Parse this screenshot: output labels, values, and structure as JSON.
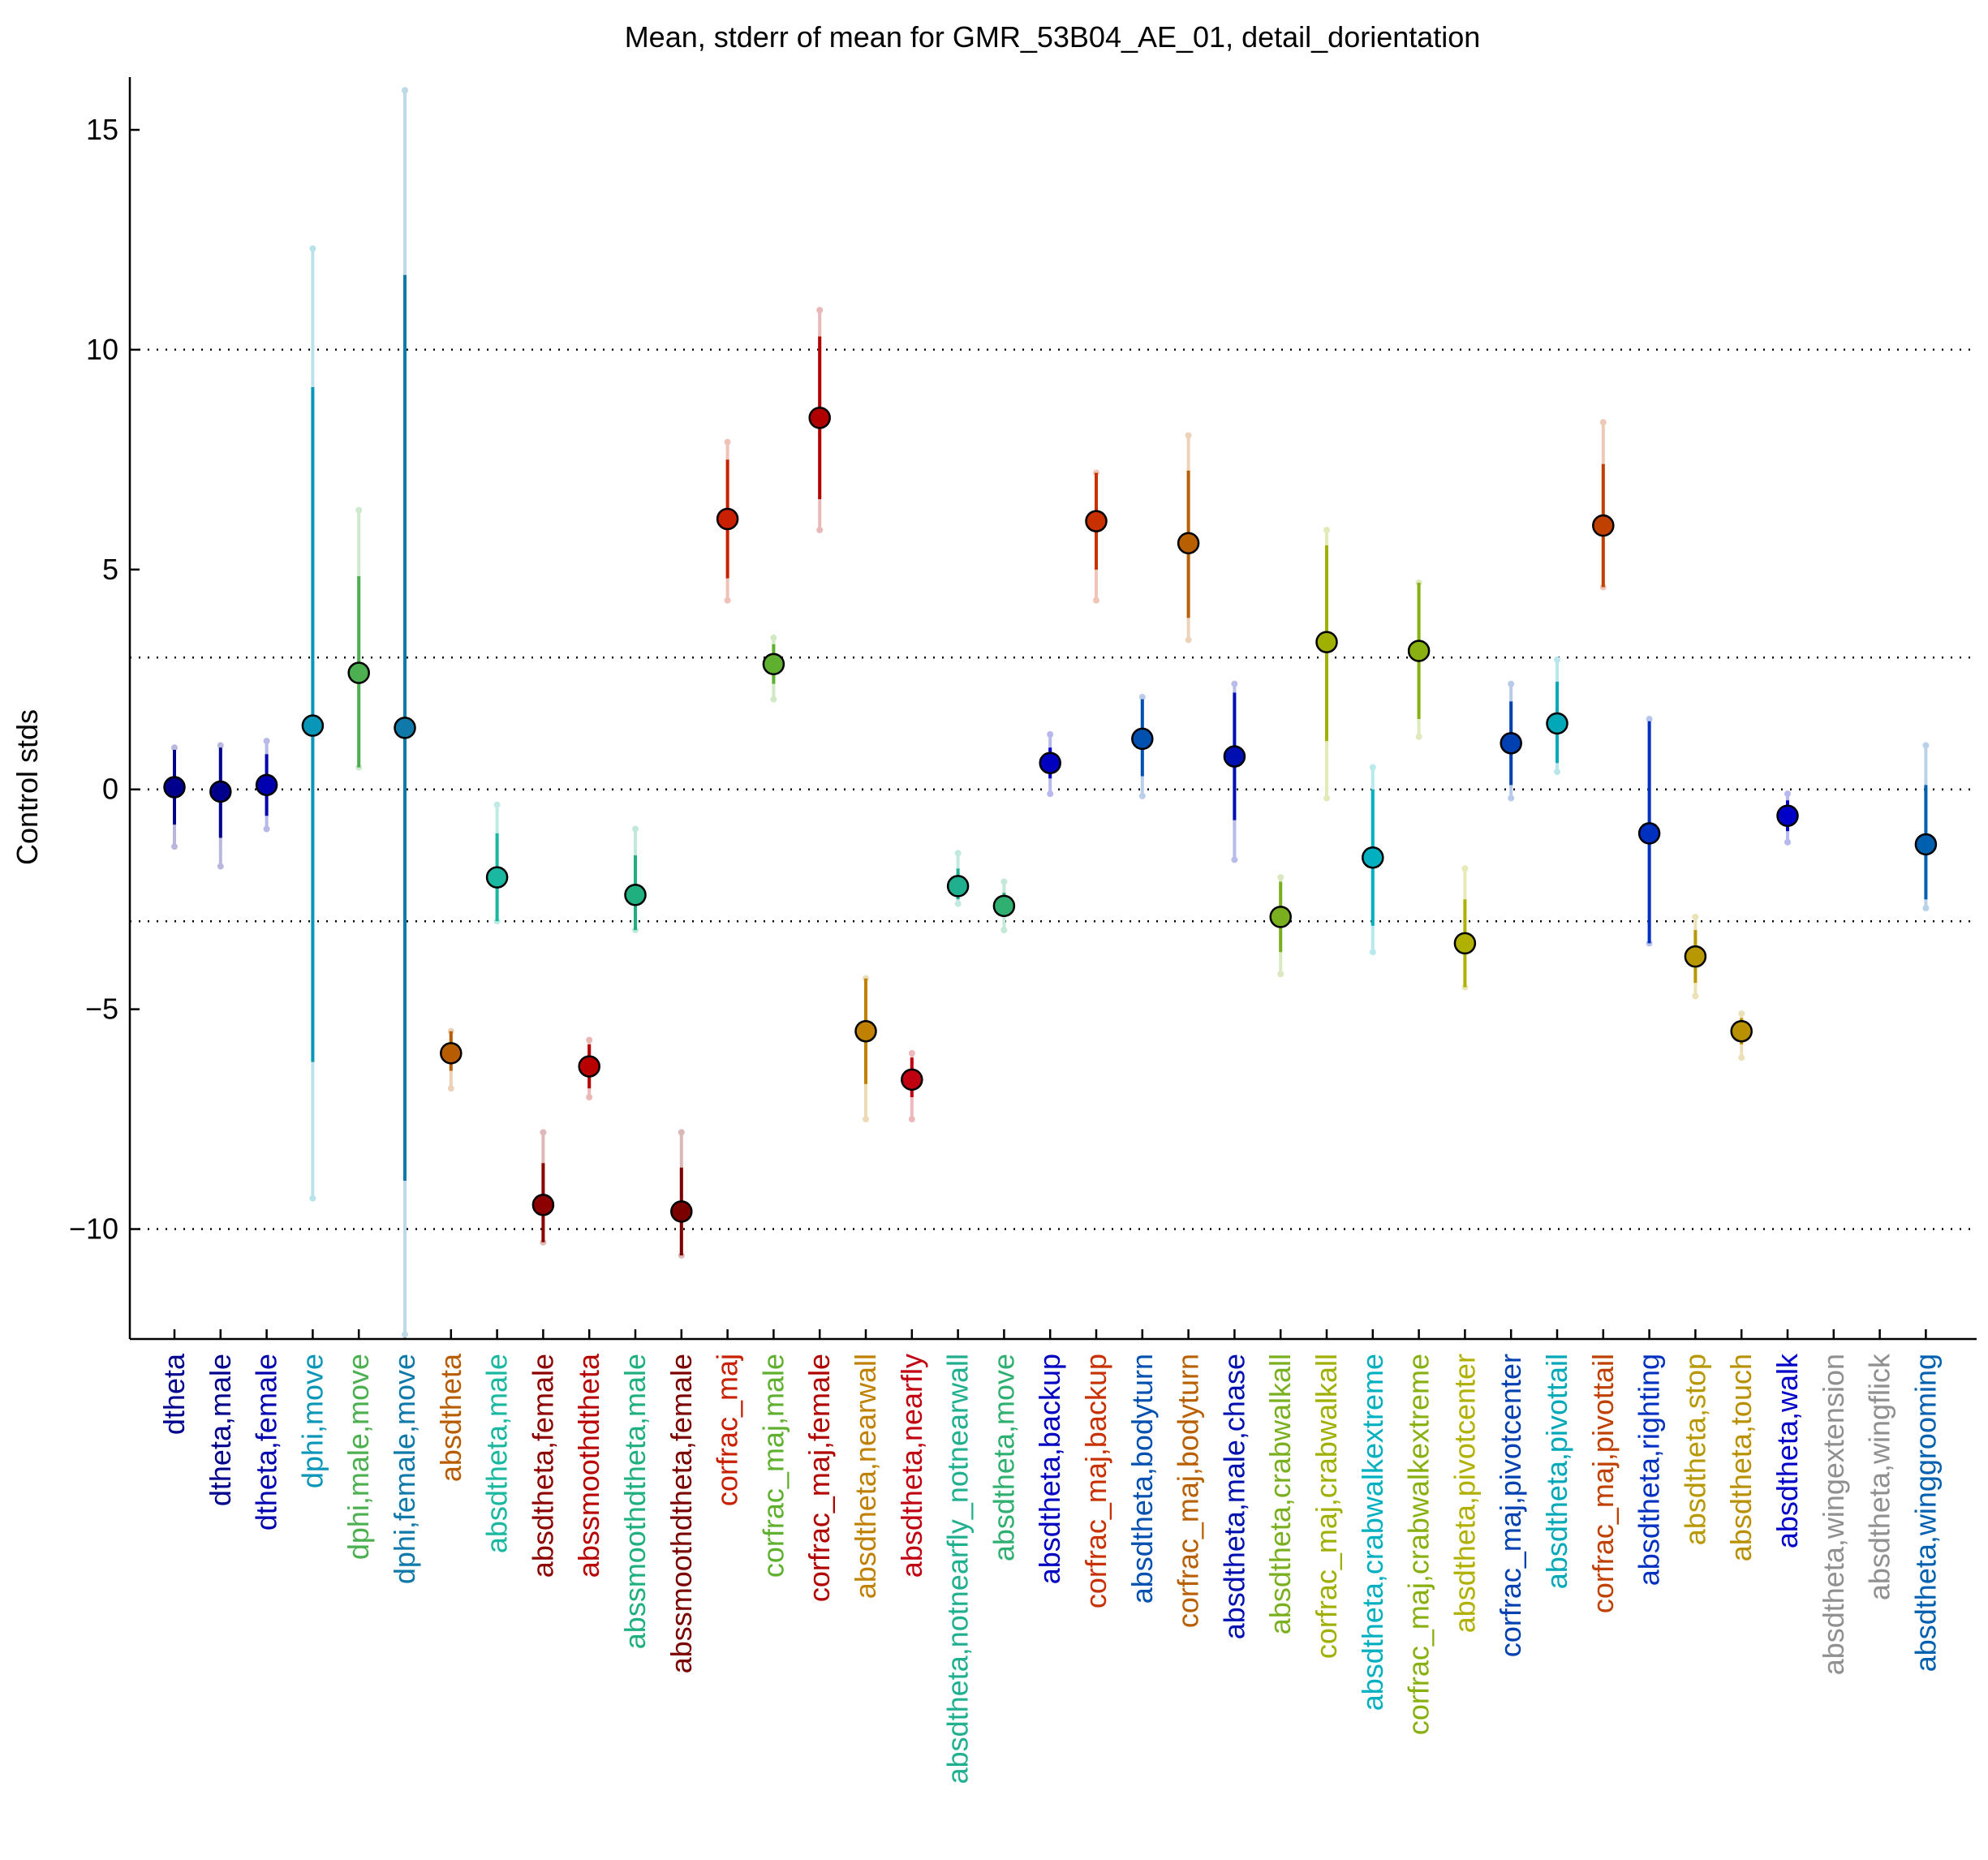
{
  "chart_data": {
    "type": "scatter",
    "title": "Mean, stderr of mean for GMR_53B04_AE_01, detail_dorientation",
    "ylabel": "Control stds",
    "xlabel": "",
    "ylim": [
      -12.5,
      16.2
    ],
    "yticks": [
      -10,
      -5,
      0,
      5,
      10,
      15
    ],
    "ytick_labels": [
      "−10",
      "−5",
      "0",
      "5",
      "10",
      "15"
    ],
    "reference_lines": [
      -10,
      -3,
      0,
      3,
      10
    ],
    "grid": false,
    "categories": [
      {
        "label": "dtheta",
        "color": "#00008c",
        "mean": 0.05,
        "se_lo": -0.8,
        "se_hi": 0.9,
        "ci_lo": -1.3,
        "ci_hi": 0.95
      },
      {
        "label": "dtheta,male",
        "color": "#00008c",
        "mean": -0.05,
        "se_lo": -1.1,
        "se_hi": 0.95,
        "ci_lo": -1.75,
        "ci_hi": 1.0
      },
      {
        "label": "dtheta,female",
        "color": "#0000b0",
        "mean": 0.1,
        "se_lo": -0.6,
        "se_hi": 0.8,
        "ci_lo": -0.9,
        "ci_hi": 1.1
      },
      {
        "label": "dphi,move",
        "color": "#0a96b8",
        "mean": 1.45,
        "se_lo": -6.2,
        "se_hi": 9.15,
        "ci_lo": -9.3,
        "ci_hi": 12.3
      },
      {
        "label": "dphi,male,move",
        "color": "#4cb050",
        "mean": 2.65,
        "se_lo": 0.5,
        "se_hi": 4.85,
        "ci_lo": 0.5,
        "ci_hi": 6.35
      },
      {
        "label": "dphi,female,move",
        "color": "#0f7aaa",
        "mean": 1.4,
        "se_lo": -8.9,
        "se_hi": 11.7,
        "ci_lo": -12.4,
        "ci_hi": 15.9
      },
      {
        "label": "absdtheta",
        "color": "#b85c00",
        "mean": -6.0,
        "se_lo": -6.4,
        "se_hi": -5.5,
        "ci_lo": -6.8,
        "ci_hi": -5.5
      },
      {
        "label": "absdtheta,male",
        "color": "#1ab8a0",
        "mean": -2.0,
        "se_lo": -3.0,
        "se_hi": -1.0,
        "ci_lo": -3.0,
        "ci_hi": -0.35
      },
      {
        "label": "absdtheta,female",
        "color": "#8c0000",
        "mean": -9.45,
        "se_lo": -10.3,
        "se_hi": -8.5,
        "ci_lo": -10.3,
        "ci_hi": -7.8
      },
      {
        "label": "abssmoothdtheta",
        "color": "#b80000",
        "mean": -6.3,
        "se_lo": -6.8,
        "se_hi": -5.8,
        "ci_lo": -7.0,
        "ci_hi": -5.7
      },
      {
        "label": "abssmoothdtheta,male",
        "color": "#20b080",
        "mean": -2.4,
        "se_lo": -3.2,
        "se_hi": -1.5,
        "ci_lo": -3.2,
        "ci_hi": -0.9
      },
      {
        "label": "abssmoothdtheta,female",
        "color": "#7a0000",
        "mean": -9.6,
        "se_lo": -10.6,
        "se_hi": -8.6,
        "ci_lo": -10.6,
        "ci_hi": -7.8
      },
      {
        "label": "corfrac_maj",
        "color": "#c82000",
        "mean": 6.15,
        "se_lo": 4.8,
        "se_hi": 7.5,
        "ci_lo": 4.3,
        "ci_hi": 7.9
      },
      {
        "label": "corfrac_maj,male",
        "color": "#60b030",
        "mean": 2.85,
        "se_lo": 2.4,
        "se_hi": 3.3,
        "ci_lo": 2.05,
        "ci_hi": 3.45
      },
      {
        "label": "corfrac_maj,female",
        "color": "#b00000",
        "mean": 8.45,
        "se_lo": 6.6,
        "se_hi": 10.3,
        "ci_lo": 5.9,
        "ci_hi": 10.9
      },
      {
        "label": "absdtheta,nearwall",
        "color": "#c08000",
        "mean": -5.5,
        "se_lo": -6.7,
        "se_hi": -4.3,
        "ci_lo": -7.5,
        "ci_hi": -4.3
      },
      {
        "label": "absdtheta,nearfly",
        "color": "#c00010",
        "mean": -6.6,
        "se_lo": -7.0,
        "se_hi": -6.1,
        "ci_lo": -7.5,
        "ci_hi": -6.0
      },
      {
        "label": "absdtheta,notnearfly_notnearwall",
        "color": "#20b090",
        "mean": -2.2,
        "se_lo": -2.5,
        "se_hi": -1.8,
        "ci_lo": -2.6,
        "ci_hi": -1.45
      },
      {
        "label": "absdtheta,move",
        "color": "#30b070",
        "mean": -2.65,
        "se_lo": -2.9,
        "se_hi": -2.35,
        "ci_lo": -3.2,
        "ci_hi": -2.1
      },
      {
        "label": "absdtheta,backup",
        "color": "#0000c0",
        "mean": 0.6,
        "se_lo": 0.25,
        "se_hi": 0.95,
        "ci_lo": -0.1,
        "ci_hi": 1.25
      },
      {
        "label": "corfrac_maj,backup",
        "color": "#c83000",
        "mean": 6.1,
        "se_lo": 5.0,
        "se_hi": 7.2,
        "ci_lo": 4.3,
        "ci_hi": 7.2
      },
      {
        "label": "absdtheta,bodyturn",
        "color": "#0050b0",
        "mean": 1.15,
        "se_lo": 0.3,
        "se_hi": 2.05,
        "ci_lo": -0.15,
        "ci_hi": 2.1
      },
      {
        "label": "corfrac_maj,bodyturn",
        "color": "#b86000",
        "mean": 5.6,
        "se_lo": 3.9,
        "se_hi": 7.25,
        "ci_lo": 3.4,
        "ci_hi": 8.05
      },
      {
        "label": "absdtheta,male,chase",
        "color": "#0010b0",
        "mean": 0.75,
        "se_lo": -0.7,
        "se_hi": 2.2,
        "ci_lo": -1.6,
        "ci_hi": 2.4
      },
      {
        "label": "absdtheta,crabwalkall",
        "color": "#7ab020",
        "mean": -2.9,
        "se_lo": -3.7,
        "se_hi": -2.1,
        "ci_lo": -4.2,
        "ci_hi": -2.0
      },
      {
        "label": "corfrac_maj,crabwalkall",
        "color": "#a0b000",
        "mean": 3.35,
        "se_lo": 1.1,
        "se_hi": 5.55,
        "ci_lo": -0.2,
        "ci_hi": 5.9
      },
      {
        "label": "absdtheta,crabwalkextreme",
        "color": "#00b0c0",
        "mean": -1.55,
        "se_lo": -3.1,
        "se_hi": 0.0,
        "ci_lo": -3.7,
        "ci_hi": 0.5
      },
      {
        "label": "corfrac_maj,crabwalkextreme",
        "color": "#88b010",
        "mean": 3.15,
        "se_lo": 1.6,
        "se_hi": 4.7,
        "ci_lo": 1.2,
        "ci_hi": 4.7
      },
      {
        "label": "absdtheta,pivotcenter",
        "color": "#b0b000",
        "mean": -3.5,
        "se_lo": -4.5,
        "se_hi": -2.5,
        "ci_lo": -4.5,
        "ci_hi": -1.8
      },
      {
        "label": "corfrac_maj,pivotcenter",
        "color": "#0040b0",
        "mean": 1.05,
        "se_lo": 0.1,
        "se_hi": 2.0,
        "ci_lo": -0.2,
        "ci_hi": 2.4
      },
      {
        "label": "absdtheta,pivottail",
        "color": "#00a8b8",
        "mean": 1.5,
        "se_lo": 0.6,
        "se_hi": 2.45,
        "ci_lo": 0.4,
        "ci_hi": 2.95
      },
      {
        "label": "corfrac_maj,pivottail",
        "color": "#c04000",
        "mean": 6.0,
        "se_lo": 4.6,
        "se_hi": 7.4,
        "ci_lo": 4.6,
        "ci_hi": 8.35
      },
      {
        "label": "absdtheta,righting",
        "color": "#0030c0",
        "mean": -1.0,
        "se_lo": -3.5,
        "se_hi": 1.55,
        "ci_lo": -3.5,
        "ci_hi": 1.6
      },
      {
        "label": "absdtheta,stop",
        "color": "#b89800",
        "mean": -3.8,
        "se_lo": -4.4,
        "se_hi": -3.2,
        "ci_lo": -4.7,
        "ci_hi": -2.9
      },
      {
        "label": "absdtheta,touch",
        "color": "#b89000",
        "mean": -5.5,
        "se_lo": -5.8,
        "se_hi": -5.2,
        "ci_lo": -6.1,
        "ci_hi": -5.1
      },
      {
        "label": "absdtheta,walk",
        "color": "#0000c8",
        "mean": -0.6,
        "se_lo": -0.95,
        "se_hi": -0.25,
        "ci_lo": -1.2,
        "ci_hi": -0.1
      },
      {
        "label": "absdtheta,wingextension",
        "color": "#909090",
        "mean": null,
        "se_lo": null,
        "se_hi": null,
        "ci_lo": null,
        "ci_hi": null
      },
      {
        "label": "absdtheta,wingflick",
        "color": "#909090",
        "mean": null,
        "se_lo": null,
        "se_hi": null,
        "ci_lo": null,
        "ci_hi": null
      },
      {
        "label": "absdtheta,winggrooming",
        "color": "#0060b0",
        "mean": -1.25,
        "se_lo": -2.5,
        "se_hi": 0.1,
        "ci_lo": -2.7,
        "ci_hi": 1.0
      }
    ]
  }
}
